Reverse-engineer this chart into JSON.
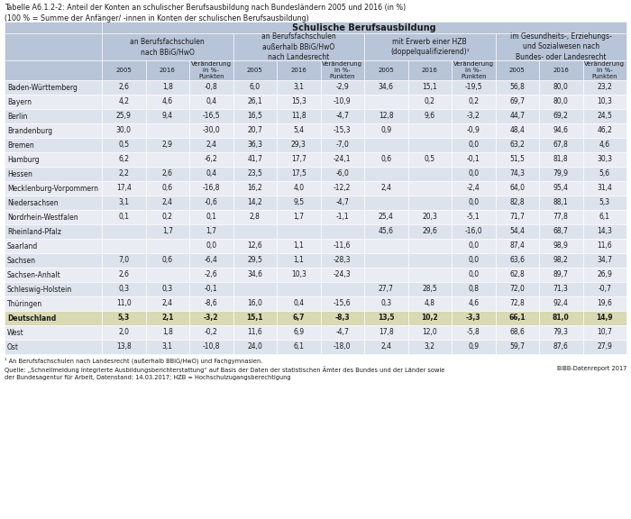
{
  "title": "Tabelle A6.1.2-2: Anteil der Konten an schulischer Berufsausbildung nach Bundesländern 2005 und 2016 (in %)\n(100 % = Summe der Anfänger/ -innen in Konten der schulischen Berufsausbildung)",
  "header_main": "Schulische Berufsausbildung",
  "header_groups": [
    "an Berufsfachschulen\nnach BBiG/HwO",
    "an Berufsfachschulen\naußerhalb BBiG/HwO\nnach Landesrecht",
    "mit Erwerb einer HZB\n(doppelqualifizierend)¹",
    "im Gesundheits-, Erziehungs-\nund Sozialwesen nach\nBundes- oder Landesrecht"
  ],
  "sub_labels": [
    "2005",
    "2016",
    "Veränderung\nin %-\nPunkten"
  ],
  "rows": [
    {
      "name": "Baden-Württemberg",
      "vals": [
        "2,6",
        "1,8",
        "-0,8",
        "6,0",
        "3,1",
        "-2,9",
        "34,6",
        "15,1",
        "-19,5",
        "56,8",
        "80,0",
        "23,2"
      ],
      "highlight": false
    },
    {
      "name": "Bayern",
      "vals": [
        "4,2",
        "4,6",
        "0,4",
        "26,1",
        "15,3",
        "-10,9",
        "",
        "0,2",
        "0,2",
        "69,7",
        "80,0",
        "10,3"
      ],
      "highlight": false
    },
    {
      "name": "Berlin",
      "vals": [
        "25,9",
        "9,4",
        "-16,5",
        "16,5",
        "11,8",
        "-4,7",
        "12,8",
        "9,6",
        "-3,2",
        "44,7",
        "69,2",
        "24,5"
      ],
      "highlight": false
    },
    {
      "name": "Brandenburg",
      "vals": [
        "30,0",
        "",
        "-30,0",
        "20,7",
        "5,4",
        "-15,3",
        "0,9",
        "",
        "-0,9",
        "48,4",
        "94,6",
        "46,2"
      ],
      "highlight": false
    },
    {
      "name": "Bremen",
      "vals": [
        "0,5",
        "2,9",
        "2,4",
        "36,3",
        "29,3",
        "-7,0",
        "",
        "",
        "0,0",
        "63,2",
        "67,8",
        "4,6"
      ],
      "highlight": false
    },
    {
      "name": "Hamburg",
      "vals": [
        "6,2",
        "",
        "-6,2",
        "41,7",
        "17,7",
        "-24,1",
        "0,6",
        "0,5",
        "-0,1",
        "51,5",
        "81,8",
        "30,3"
      ],
      "highlight": false
    },
    {
      "name": "Hessen",
      "vals": [
        "2,2",
        "2,6",
        "0,4",
        "23,5",
        "17,5",
        "-6,0",
        "",
        "",
        "0,0",
        "74,3",
        "79,9",
        "5,6"
      ],
      "highlight": false
    },
    {
      "name": "Mecklenburg-Vorpommern",
      "vals": [
        "17,4",
        "0,6",
        "-16,8",
        "16,2",
        "4,0",
        "-12,2",
        "2,4",
        "",
        "-2,4",
        "64,0",
        "95,4",
        "31,4"
      ],
      "highlight": false
    },
    {
      "name": "Niedersachsen",
      "vals": [
        "3,1",
        "2,4",
        "-0,6",
        "14,2",
        "9,5",
        "-4,7",
        "",
        "",
        "0,0",
        "82,8",
        "88,1",
        "5,3"
      ],
      "highlight": false
    },
    {
      "name": "Nordrhein-Westfalen",
      "vals": [
        "0,1",
        "0,2",
        "0,1",
        "2,8",
        "1,7",
        "-1,1",
        "25,4",
        "20,3",
        "-5,1",
        "71,7",
        "77,8",
        "6,1"
      ],
      "highlight": false
    },
    {
      "name": "Rheinland-Pfalz",
      "vals": [
        "",
        "1,7",
        "1,7",
        "",
        "",
        "",
        "45,6",
        "29,6",
        "-16,0",
        "54,4",
        "68,7",
        "14,3"
      ],
      "highlight": false
    },
    {
      "name": "Saarland",
      "vals": [
        "",
        "",
        "0,0",
        "12,6",
        "1,1",
        "-11,6",
        "",
        "",
        "0,0",
        "87,4",
        "98,9",
        "11,6"
      ],
      "highlight": false
    },
    {
      "name": "Sachsen",
      "vals": [
        "7,0",
        "0,6",
        "-6,4",
        "29,5",
        "1,1",
        "-28,3",
        "",
        "",
        "0,0",
        "63,6",
        "98,2",
        "34,7"
      ],
      "highlight": false
    },
    {
      "name": "Sachsen-Anhalt",
      "vals": [
        "2,6",
        "",
        "-2,6",
        "34,6",
        "10,3",
        "-24,3",
        "",
        "",
        "0,0",
        "62,8",
        "89,7",
        "26,9"
      ],
      "highlight": false
    },
    {
      "name": "Schleswig-Holstein",
      "vals": [
        "0,3",
        "0,3",
        "-0,1",
        "",
        "",
        "",
        "27,7",
        "28,5",
        "0,8",
        "72,0",
        "71,3",
        "-0,7"
      ],
      "highlight": false
    },
    {
      "name": "Thüringen",
      "vals": [
        "11,0",
        "2,4",
        "-8,6",
        "16,0",
        "0,4",
        "-15,6",
        "0,3",
        "4,8",
        "4,6",
        "72,8",
        "92,4",
        "19,6"
      ],
      "highlight": false
    },
    {
      "name": "Deutschland",
      "vals": [
        "5,3",
        "2,1",
        "-3,2",
        "15,1",
        "6,7",
        "-8,3",
        "13,5",
        "10,2",
        "-3,3",
        "66,1",
        "81,0",
        "14,9"
      ],
      "highlight": true
    },
    {
      "name": "West",
      "vals": [
        "2,0",
        "1,8",
        "-0,2",
        "11,6",
        "6,9",
        "-4,7",
        "17,8",
        "12,0",
        "-5,8",
        "68,6",
        "79,3",
        "10,7"
      ],
      "highlight": false
    },
    {
      "name": "Ost",
      "vals": [
        "13,8",
        "3,1",
        "-10,8",
        "24,0",
        "6,1",
        "-18,0",
        "2,4",
        "3,2",
        "0,9",
        "59,7",
        "87,6",
        "27,9"
      ],
      "highlight": false
    }
  ],
  "footnote1": "¹ An Berufsfachschulen nach Landesrecht (außerhalb BBiG/HwO) und Fachgymnasien.",
  "footnote2": "Quelle: „Schnellmeldung Integrierte Ausbildungsberichterstattung“ auf Basis der Daten der statistischen Ämter des Bundes und der Länder sowie\nder Bundesagentur für Arbeit, Datenstand: 14.03.2017; HZB = Hochschulzugangsberechtigung",
  "source_right": "BIBB-Datenreport 2017",
  "bg_header": "#b8c4d8",
  "bg_row_even": "#dde3ed",
  "bg_row_odd": "#eaecf4",
  "bg_highlight": "#d9d9b3",
  "bg_white": "#ffffff"
}
